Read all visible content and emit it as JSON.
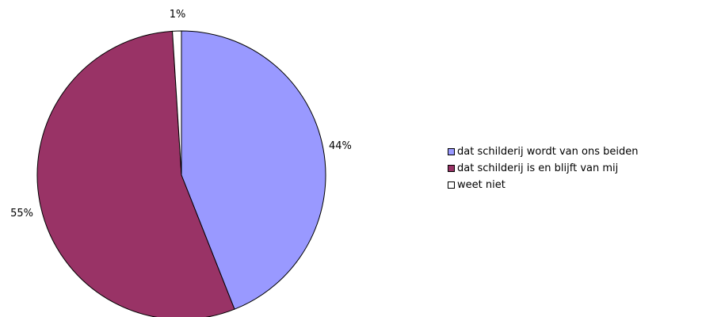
{
  "chart_data": {
    "type": "pie",
    "title": "",
    "slices": [
      {
        "label": "dat schilderij wordt van ons beiden",
        "value": 44,
        "display": "44%",
        "color": "#9999ff"
      },
      {
        "label": "dat schilderij is en blijft van mij",
        "value": 55,
        "display": "55%",
        "color": "#993366"
      },
      {
        "label": "weet niet",
        "value": 1,
        "display": "1%",
        "color": "#ffffff"
      }
    ],
    "legend_position": "right"
  }
}
